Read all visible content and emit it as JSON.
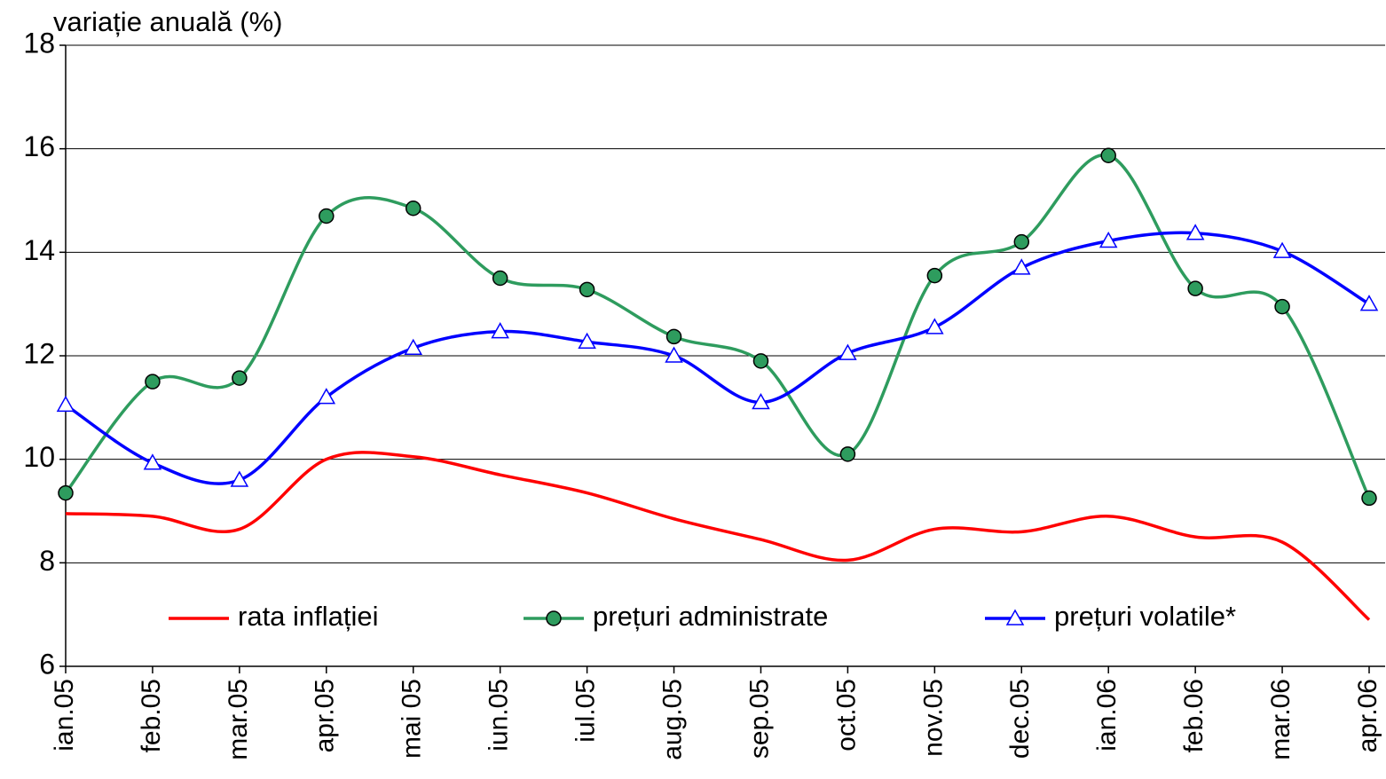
{
  "chart_data": {
    "type": "line",
    "y_label": "variație anuală (%)",
    "categories": [
      "ian.05",
      "feb.05",
      "mar.05",
      "apr.05",
      "mai 05",
      "iun.05",
      "iul.05",
      "aug.05",
      "sep.05",
      "oct.05",
      "nov.05",
      "dec.05",
      "ian.06",
      "feb.06",
      "mar.06",
      "apr.06"
    ],
    "series": [
      {
        "name": "rata inflației",
        "color": "#ff0000",
        "marker": "none",
        "values": [
          8.95,
          8.9,
          8.65,
          10.0,
          10.05,
          9.7,
          9.35,
          8.85,
          8.45,
          8.05,
          8.65,
          8.6,
          8.9,
          8.5,
          8.4,
          6.9
        ]
      },
      {
        "name": "prețuri administrate",
        "color": "#2e9c5e",
        "marker": "circle",
        "values": [
          9.35,
          11.5,
          11.57,
          14.7,
          14.85,
          13.5,
          13.28,
          12.37,
          11.9,
          10.1,
          13.55,
          14.2,
          15.87,
          13.3,
          12.95,
          9.25
        ]
      },
      {
        "name": "prețuri volatile*",
        "color": "#0000ff",
        "marker": "triangle",
        "values": [
          11.05,
          9.93,
          9.6,
          11.2,
          12.15,
          12.47,
          12.27,
          12.0,
          11.1,
          12.05,
          12.55,
          13.7,
          14.22,
          14.37,
          14.02,
          13.0
        ]
      }
    ],
    "ylim": [
      6,
      18
    ],
    "yticks": [
      6,
      8,
      10,
      12,
      14,
      16,
      18
    ],
    "grid": true,
    "legend": "bottom"
  }
}
